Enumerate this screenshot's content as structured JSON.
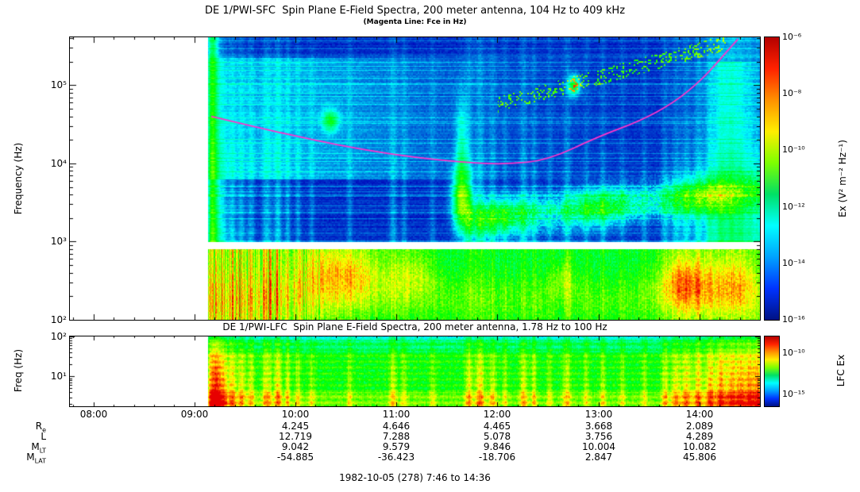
{
  "page": {
    "background": "#ffffff",
    "footer": "1982-10-05 (278) 7:46 to 14:36"
  },
  "colors": {
    "magenta_line": "#ff33cc",
    "axis": "#000000",
    "colorbar_stops": [
      "#b40000",
      "#ff2200",
      "#ff9100",
      "#ffee00",
      "#7dff00",
      "#00e065",
      "#00ffff",
      "#00a2ff",
      "#0033ff",
      "#001284"
    ]
  },
  "sfc": {
    "title": "DE 1/PWI-SFC  Spin Plane E-Field Spectra, 200 meter antenna, 104 Hz to 409 kHz",
    "subtitle": "(Magenta Line: Fce in Hz)",
    "ylabel": "Frequency (Hz)",
    "yticks": [
      "10⁵",
      "10⁴",
      "10³",
      "10²"
    ],
    "colorbar": {
      "label": "Ex (V² m⁻² Hz⁻¹)",
      "ticks": [
        "10⁻⁶",
        "10⁻⁸",
        "10⁻¹⁰",
        "10⁻¹²",
        "10⁻¹⁴",
        "10⁻¹⁶"
      ]
    }
  },
  "lfc": {
    "title": "DE 1/PWI-LFC  Spin Plane E-Field Spectra, 200 meter antenna, 1.78 Hz to 100 Hz",
    "ylabel": "Freq (Hz)",
    "yticks": [
      "10²",
      "10¹"
    ],
    "colorbar": {
      "label": "LFC Ex",
      "ticks": [
        "10⁻¹⁰",
        "10⁻¹⁵"
      ]
    }
  },
  "xaxis": {
    "ticks": [
      "08:00",
      "09:00",
      "10:00",
      "11:00",
      "12:00",
      "13:00",
      "14:00"
    ]
  },
  "ephemeris": {
    "value_times": [
      "10:00",
      "11:00",
      "12:00",
      "13:00",
      "14:00"
    ],
    "rows": [
      {
        "label": {
          "base": "R",
          "sub": "e"
        },
        "values": [
          "4.245",
          "4.646",
          "4.465",
          "3.668",
          "2.089"
        ]
      },
      {
        "label": {
          "base": "L",
          "sub": ""
        },
        "values": [
          "12.719",
          "7.288",
          "5.078",
          "3.756",
          "4.289"
        ]
      },
      {
        "label": {
          "base": "M",
          "sub": "LT"
        },
        "values": [
          "9.042",
          "9.579",
          "9.846",
          "10.004",
          "10.082"
        ]
      },
      {
        "label": {
          "base": "M",
          "sub": "LAT"
        },
        "values": [
          "-54.885",
          "-36.423",
          "-18.706",
          "2.847",
          "45.806"
        ]
      }
    ]
  },
  "chart_data": [
    {
      "type": "heatmap",
      "panel": "SFC",
      "title": "DE 1/PWI-SFC  Spin Plane E-Field Spectra, 200 meter antenna, 104 Hz to 409 kHz",
      "subtitle": "(Magenta Line: Fce in Hz)",
      "xlabel": "",
      "ylabel": "Frequency (Hz)",
      "x_range": [
        "07:46",
        "14:36"
      ],
      "x_ticks": [
        "08:00",
        "09:00",
        "10:00",
        "11:00",
        "12:00",
        "13:00",
        "14:00"
      ],
      "y_scale": "log",
      "y_range_hz": [
        104,
        409000
      ],
      "y_ticks": [
        "10²",
        "10³",
        "10⁴",
        "10⁵"
      ],
      "colorbar": {
        "label": "Ex (V² m⁻² Hz⁻¹)",
        "scale": "log",
        "min": 1e-16,
        "max": 1e-06
      },
      "data_start_time": "09:08",
      "data_gap_hz": [
        810,
        1000
      ],
      "fce_line": {
        "name": "Fce (electron cyclotron frequency)",
        "color": "#ff33cc",
        "x": [
          "09:10",
          "09:40",
          "10:10",
          "10:40",
          "11:10",
          "11:40",
          "12:05",
          "12:30",
          "13:00",
          "13:25",
          "13:45",
          "14:02",
          "14:15",
          "14:23"
        ],
        "y_hz": [
          40000,
          28000,
          20000,
          15000,
          12000,
          10300,
          9700,
          11000,
          22000,
          35000,
          60000,
          120000,
          250000,
          390000
        ]
      },
      "features": [
        "intense 100-800 Hz band from 09:08 to end, strongest 10:05-11:10 and 13:40-14:15",
        "broadband bursts at 09:08-09:35 and 14:10-14:30 spanning all frequencies",
        "green 2-8 kHz emission band from about 11:40 to 14:00 with bright knot near 11:45",
        "scattered emissions rising from ~70 kHz at 12:20 to ~250 kHz at 13:50"
      ]
    },
    {
      "type": "heatmap",
      "panel": "LFC",
      "title": "DE 1/PWI-LFC  Spin Plane E-Field Spectra, 200 meter antenna, 1.78 Hz to 100 Hz",
      "xlabel": "",
      "ylabel": "Freq (Hz)",
      "x_range": [
        "07:46",
        "14:36"
      ],
      "y_scale": "log",
      "y_range_hz": [
        1.78,
        100
      ],
      "y_ticks": [
        "10¹",
        "10²"
      ],
      "colorbar": {
        "label": "LFC Ex",
        "scale": "log",
        "tick_values": [
          1e-10,
          1e-15
        ]
      },
      "data_start_time": "09:08",
      "burst_times": [
        "09:10",
        "09:15",
        "09:25",
        "09:50",
        "10:00",
        "10:15",
        "11:00",
        "11:45",
        "11:55",
        "12:05",
        "12:20",
        "12:30",
        "13:00",
        "13:50",
        "14:00",
        "14:10",
        "14:20",
        "14:30"
      ]
    }
  ]
}
